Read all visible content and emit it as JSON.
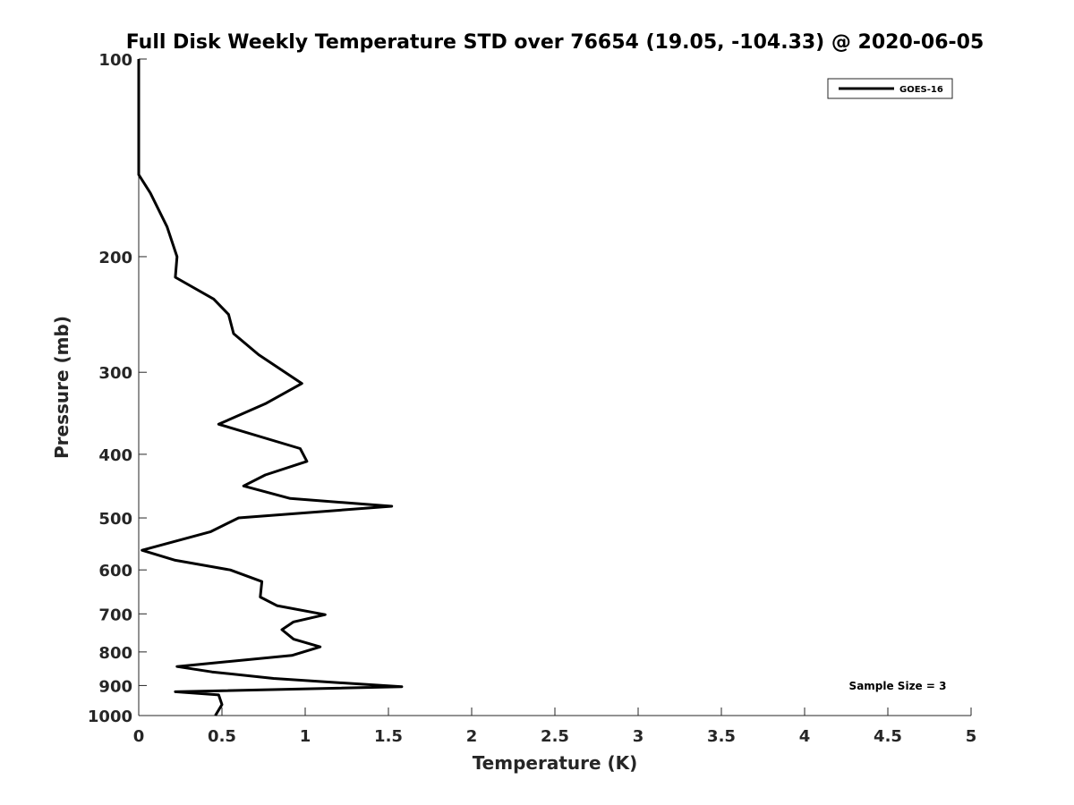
{
  "chart_data": {
    "type": "line",
    "title": "Full Disk Weekly Temperature STD over 76654 (19.05, -104.33) @ 2020-06-05",
    "xlabel": "Temperature (K)",
    "ylabel": "Pressure (mb)",
    "xlim": [
      0,
      5
    ],
    "ylim": [
      100,
      1000
    ],
    "yscale": "log",
    "y_reversed": true,
    "xticks": [
      0,
      0.5,
      1,
      1.5,
      2,
      2.5,
      3,
      3.5,
      4,
      4.5,
      5
    ],
    "xtick_labels": [
      "0",
      "0.5",
      "1",
      "1.5",
      "2",
      "2.5",
      "3",
      "3.5",
      "4",
      "4.5",
      "5"
    ],
    "yticks": [
      100,
      200,
      300,
      400,
      500,
      600,
      700,
      800,
      900,
      1000
    ],
    "ytick_labels": [
      "100",
      "200",
      "300",
      "400",
      "500",
      "600",
      "700",
      "800",
      "900",
      "1000"
    ],
    "legend": {
      "location": "top-right",
      "entries": [
        "GOES-16"
      ]
    },
    "annotation": "Sample Size = 3",
    "series": [
      {
        "name": "GOES-16",
        "color": "#000000",
        "points": [
          [
            0.0,
            100
          ],
          [
            0.0,
            115
          ],
          [
            0.0,
            135
          ],
          [
            0.0,
            150
          ],
          [
            0.07,
            160
          ],
          [
            0.17,
            180
          ],
          [
            0.23,
            200
          ],
          [
            0.22,
            215
          ],
          [
            0.45,
            232
          ],
          [
            0.54,
            245
          ],
          [
            0.57,
            262
          ],
          [
            0.72,
            282
          ],
          [
            0.98,
            312
          ],
          [
            0.76,
            335
          ],
          [
            0.48,
            360
          ],
          [
            0.97,
            392
          ],
          [
            1.01,
            410
          ],
          [
            0.76,
            430
          ],
          [
            0.63,
            447
          ],
          [
            0.91,
            467
          ],
          [
            1.52,
            480
          ],
          [
            0.6,
            500
          ],
          [
            0.43,
            525
          ],
          [
            0.02,
            560
          ],
          [
            0.22,
            580
          ],
          [
            0.55,
            600
          ],
          [
            0.74,
            625
          ],
          [
            0.73,
            660
          ],
          [
            0.83,
            680
          ],
          [
            1.12,
            702
          ],
          [
            0.93,
            720
          ],
          [
            0.86,
            740
          ],
          [
            0.93,
            765
          ],
          [
            1.09,
            786
          ],
          [
            0.92,
            810
          ],
          [
            0.23,
            842
          ],
          [
            0.44,
            858
          ],
          [
            0.81,
            878
          ],
          [
            1.58,
            904
          ],
          [
            0.22,
            920
          ],
          [
            0.48,
            930
          ],
          [
            0.5,
            962
          ],
          [
            0.46,
            1000
          ]
        ]
      }
    ]
  }
}
